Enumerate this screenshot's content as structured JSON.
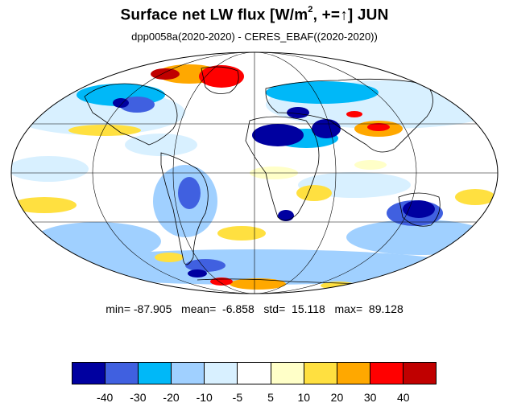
{
  "title": {
    "main": "Surface net LW flux [W/m",
    "sup": "2",
    "mid": ", +=",
    "arrow": "↑",
    "end": "]  JUN"
  },
  "subtitle": "dpp0058a(2020-2020) - CERES_EBAF((2020-2020))",
  "stats": {
    "min_label": "min=",
    "min": "-87.905",
    "mean_label": "mean=",
    "mean": "-6.858",
    "std_label": "std=",
    "std": "15.118",
    "max_label": "max=",
    "max": "89.128"
  },
  "colorbar": {
    "colors": [
      "#0000a0",
      "#4060e0",
      "#00b8f8",
      "#a0d0ff",
      "#d8f0ff",
      "#ffffff",
      "#ffffc8",
      "#ffe040",
      "#ffa800",
      "#ff0000",
      "#c00000"
    ],
    "labels": [
      "-40",
      "-30",
      "-20",
      "-10",
      "-5",
      "5",
      "10",
      "20",
      "30",
      "40"
    ]
  },
  "map": {
    "projection": "Mollweide",
    "background": "#ffffff",
    "regions": [
      {
        "name": "greenland",
        "color": "#ff0000"
      },
      {
        "name": "arctic-canada",
        "color": "#ffa800"
      },
      {
        "name": "sahara",
        "color": "#0000a0"
      },
      {
        "name": "arabia",
        "color": "#0000a0"
      },
      {
        "name": "tibet",
        "color": "#ff0000"
      },
      {
        "name": "australia",
        "color": "#0000a0"
      },
      {
        "name": "southern-africa",
        "color": "#0000a0"
      },
      {
        "name": "antarctic-peninsula",
        "color": "#ff0000"
      }
    ]
  }
}
